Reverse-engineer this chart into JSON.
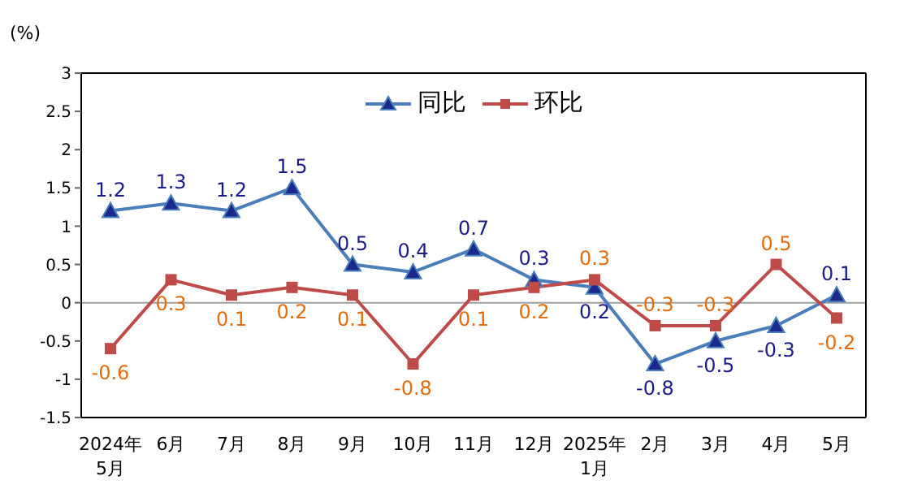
{
  "chart_data": {
    "type": "line",
    "ylabel": "(%)",
    "categories": [
      "2024年\n5月",
      "6月",
      "7月",
      "8月",
      "9月",
      "10月",
      "11月",
      "12月",
      "2025年\n1月",
      "2月",
      "3月",
      "4月",
      "5月"
    ],
    "series": [
      {
        "name": "同比",
        "color": "#4a7ebb",
        "marker": "triangle",
        "values": [
          1.2,
          1.3,
          1.2,
          1.5,
          0.5,
          0.4,
          0.7,
          0.3,
          0.2,
          -0.8,
          -0.5,
          -0.3,
          0.1
        ]
      },
      {
        "name": "环比",
        "color": "#be4b48",
        "marker": "square",
        "values": [
          -0.6,
          0.3,
          0.1,
          0.2,
          0.1,
          -0.8,
          0.1,
          0.2,
          0.3,
          -0.3,
          -0.3,
          0.5,
          -0.2
        ]
      }
    ],
    "ylim": [
      -1.5,
      3
    ],
    "yticks": [
      -1.5,
      -1,
      -0.5,
      0,
      0.5,
      1,
      1.5,
      2,
      2.5,
      3
    ],
    "ref_lines": [
      {
        "axis": "y",
        "value": 0,
        "color": "#a0a0a0"
      }
    ],
    "grid": false,
    "legend": "top",
    "data_labels": true
  }
}
